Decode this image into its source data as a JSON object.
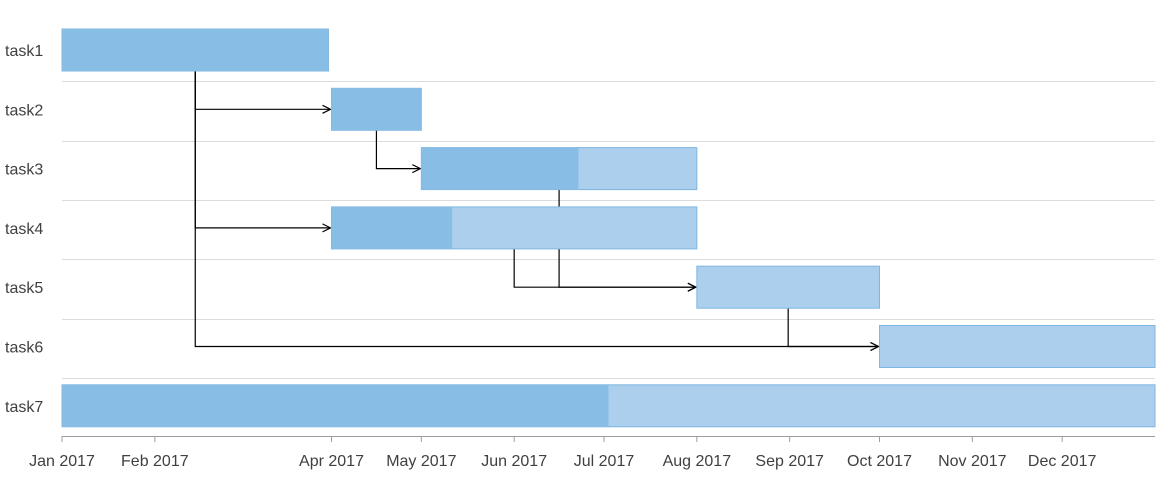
{
  "colors": {
    "complete": "#88bde6",
    "remaining": "#abcfed",
    "border": "#7fb6e2",
    "dependency": "#000000"
  },
  "chart_data": {
    "type": "gantt",
    "x_axis": {
      "range": [
        "2017-01-01",
        "2018-01-01"
      ],
      "ticks": [
        {
          "date": "2017-01-01",
          "label": "Jan 2017"
        },
        {
          "date": "2017-02-01",
          "label": "Feb 2017"
        },
        {
          "date": "2017-04-01",
          "label": "Apr 2017"
        },
        {
          "date": "2017-05-01",
          "label": "May 2017"
        },
        {
          "date": "2017-06-01",
          "label": "Jun 2017"
        },
        {
          "date": "2017-07-01",
          "label": "Jul 2017"
        },
        {
          "date": "2017-08-01",
          "label": "Aug 2017"
        },
        {
          "date": "2017-09-01",
          "label": "Sep 2017"
        },
        {
          "date": "2017-10-01",
          "label": "Oct 2017"
        },
        {
          "date": "2017-11-01",
          "label": "Nov 2017"
        },
        {
          "date": "2017-12-01",
          "label": "Dec 2017"
        }
      ]
    },
    "tasks": [
      {
        "name": "task1",
        "start": "2017-01-01",
        "end": "2017-03-31",
        "progress": 1.0,
        "depends_on": []
      },
      {
        "name": "task2",
        "start": "2017-04-01",
        "end": "2017-05-01",
        "progress": 1.0,
        "depends_on": [
          "task1"
        ]
      },
      {
        "name": "task3",
        "start": "2017-05-01",
        "end": "2017-08-01",
        "progress": 0.57,
        "depends_on": [
          "task2"
        ]
      },
      {
        "name": "task4",
        "start": "2017-04-01",
        "end": "2017-08-01",
        "progress": 0.33,
        "depends_on": [
          "task1"
        ]
      },
      {
        "name": "task5",
        "start": "2017-08-01",
        "end": "2017-10-01",
        "progress": 0.0,
        "depends_on": [
          "task3",
          "task4"
        ]
      },
      {
        "name": "task6",
        "start": "2017-10-01",
        "end": "2018-01-01",
        "progress": 0.0,
        "depends_on": [
          "task1",
          "task5"
        ]
      },
      {
        "name": "task7",
        "start": "2017-01-01",
        "end": "2018-01-01",
        "progress": 0.5,
        "depends_on": []
      }
    ]
  }
}
